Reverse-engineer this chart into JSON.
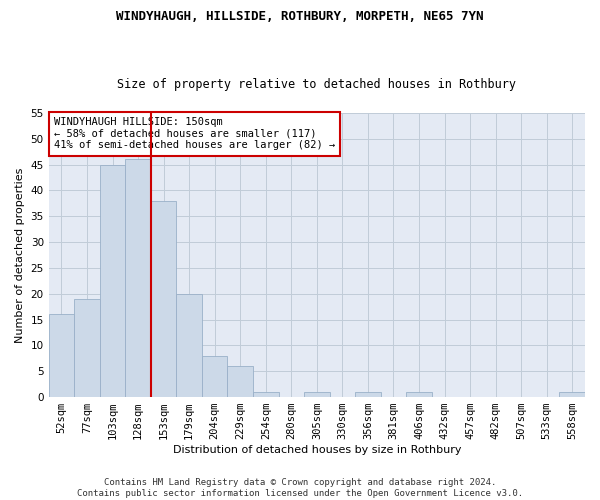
{
  "title": "WINDYHAUGH, HILLSIDE, ROTHBURY, MORPETH, NE65 7YN",
  "subtitle": "Size of property relative to detached houses in Rothbury",
  "xlabel": "Distribution of detached houses by size in Rothbury",
  "ylabel": "Number of detached properties",
  "bar_values": [
    16,
    19,
    45,
    46,
    38,
    20,
    8,
    6,
    1,
    0,
    1,
    0,
    1,
    0,
    1,
    0,
    0,
    0,
    0,
    0,
    1
  ],
  "bar_color": "#ccd9e8",
  "bar_edgecolor": "#9ab0c8",
  "x_labels": [
    "52sqm",
    "77sqm",
    "103sqm",
    "128sqm",
    "153sqm",
    "179sqm",
    "204sqm",
    "229sqm",
    "254sqm",
    "280sqm",
    "305sqm",
    "330sqm",
    "356sqm",
    "381sqm",
    "406sqm",
    "432sqm",
    "457sqm",
    "482sqm",
    "507sqm",
    "533sqm",
    "558sqm"
  ],
  "red_line_x": 3.5,
  "red_line_color": "#cc0000",
  "annotation_text": "WINDYHAUGH HILLSIDE: 150sqm\n← 58% of detached houses are smaller (117)\n41% of semi-detached houses are larger (82) →",
  "annotation_box_edgecolor": "#cc0000",
  "annotation_box_facecolor": "#ffffff",
  "ylim": [
    0,
    55
  ],
  "yticks": [
    0,
    5,
    10,
    15,
    20,
    25,
    30,
    35,
    40,
    45,
    50,
    55
  ],
  "grid_color": "#c0ccd8",
  "background_color": "#e4eaf4",
  "footer_text": "Contains HM Land Registry data © Crown copyright and database right 2024.\nContains public sector information licensed under the Open Government Licence v3.0.",
  "title_fontsize": 9,
  "subtitle_fontsize": 8.5,
  "xlabel_fontsize": 8,
  "ylabel_fontsize": 8,
  "tick_fontsize": 7.5,
  "annotation_fontsize": 7.5,
  "footer_fontsize": 6.5
}
